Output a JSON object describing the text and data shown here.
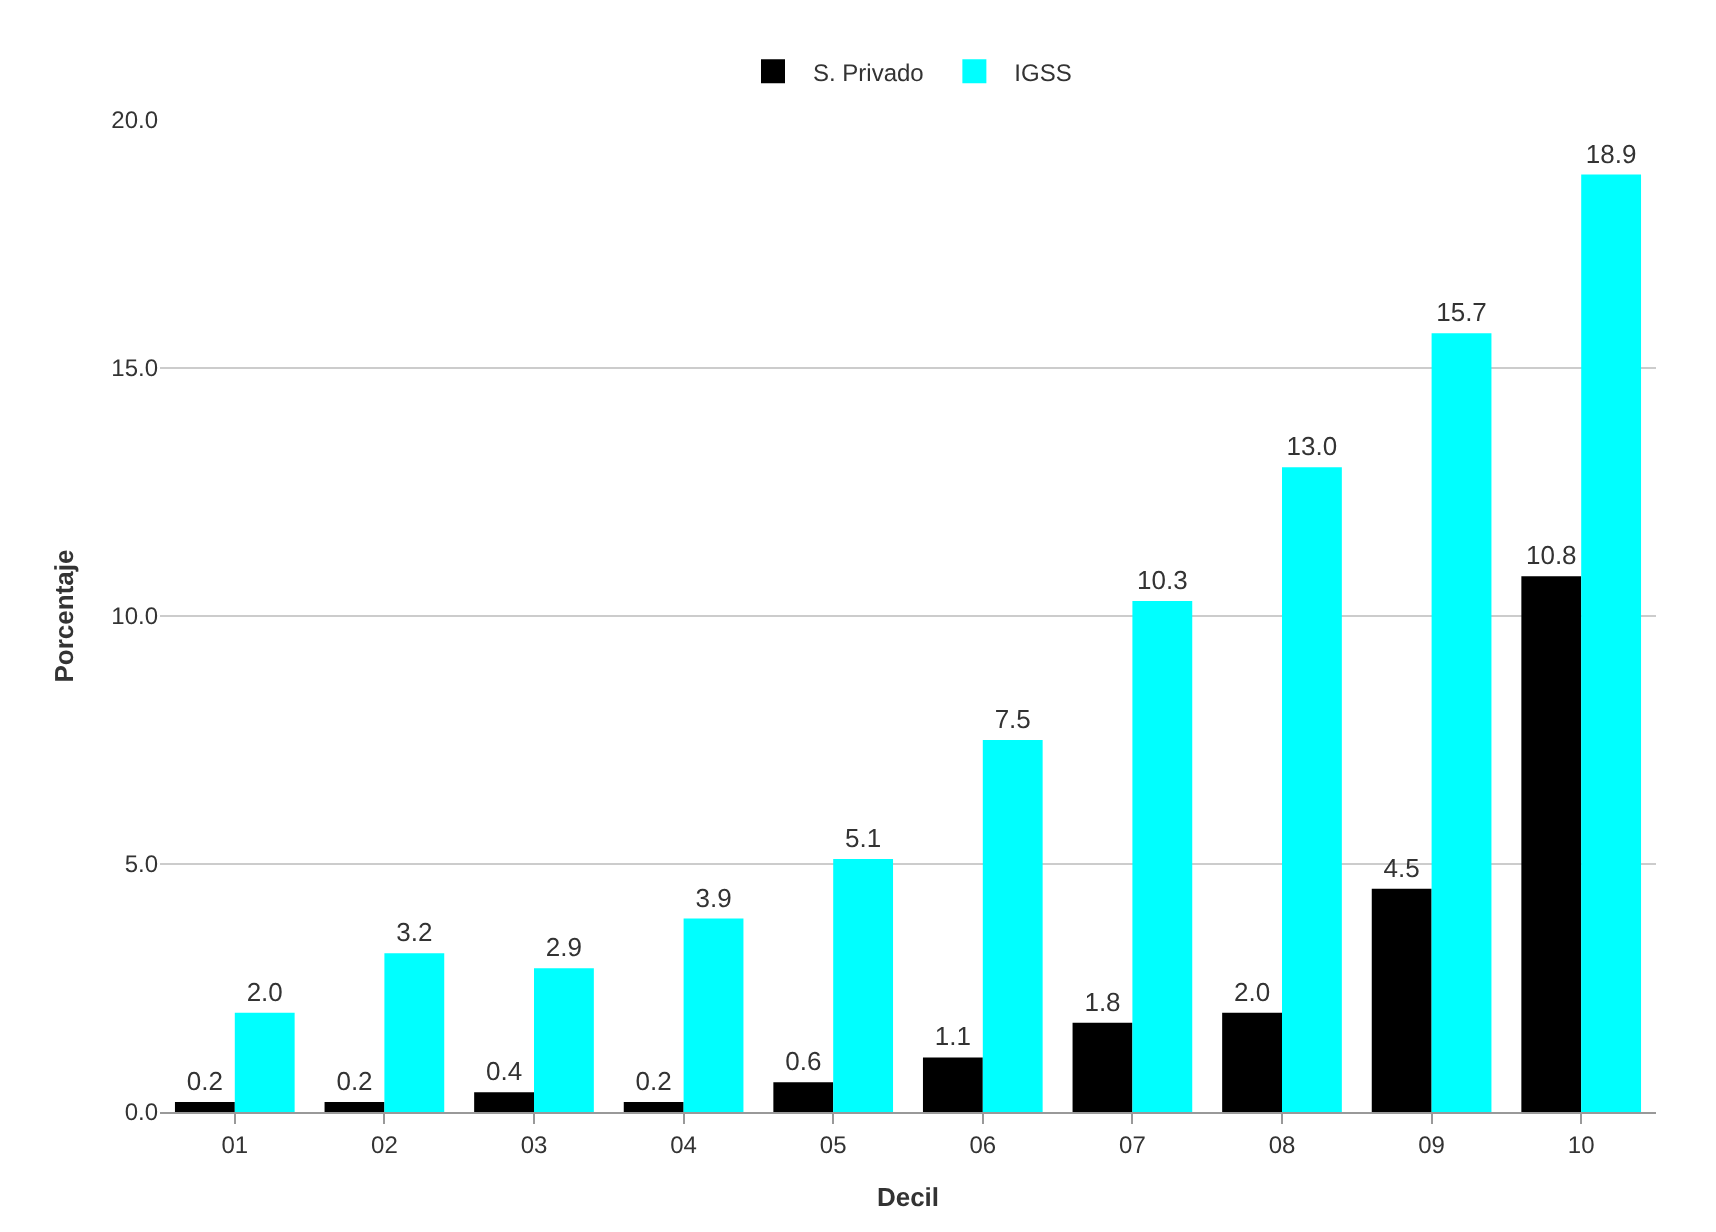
{
  "chart_data": {
    "type": "bar",
    "xlabel": "Decil",
    "ylabel": "Porcentaje",
    "categories": [
      "01",
      "02",
      "03",
      "04",
      "05",
      "06",
      "07",
      "08",
      "09",
      "10"
    ],
    "series": [
      {
        "name": "S. Privado",
        "color": "#000000",
        "values": [
          0.2,
          0.2,
          0.4,
          0.2,
          0.6,
          1.1,
          1.8,
          2.0,
          4.5,
          10.8
        ],
        "value_labels": [
          "0.2",
          "0.2",
          "0.4",
          "0.2",
          "0.6",
          "1.1",
          "1.8",
          "2.0",
          "4.5",
          "10.8"
        ]
      },
      {
        "name": "IGSS",
        "color": "#00ffff",
        "values": [
          2.0,
          3.2,
          2.9,
          3.9,
          5.1,
          7.5,
          10.3,
          13.0,
          15.7,
          18.9
        ],
        "value_labels": [
          "2.0",
          "3.2",
          "2.9",
          "3.9",
          "5.1",
          "7.5",
          "10.3",
          "13.0",
          "15.7",
          "18.9"
        ]
      }
    ],
    "ylim": [
      0,
      20
    ],
    "yticks": [
      {
        "value": 0,
        "label": "0.0"
      },
      {
        "value": 5,
        "label": "5.0"
      },
      {
        "value": 10,
        "label": "10.0"
      },
      {
        "value": 15,
        "label": "15.0"
      },
      {
        "value": 20,
        "label": "20.0"
      }
    ],
    "grid": "y",
    "legend": "top"
  }
}
